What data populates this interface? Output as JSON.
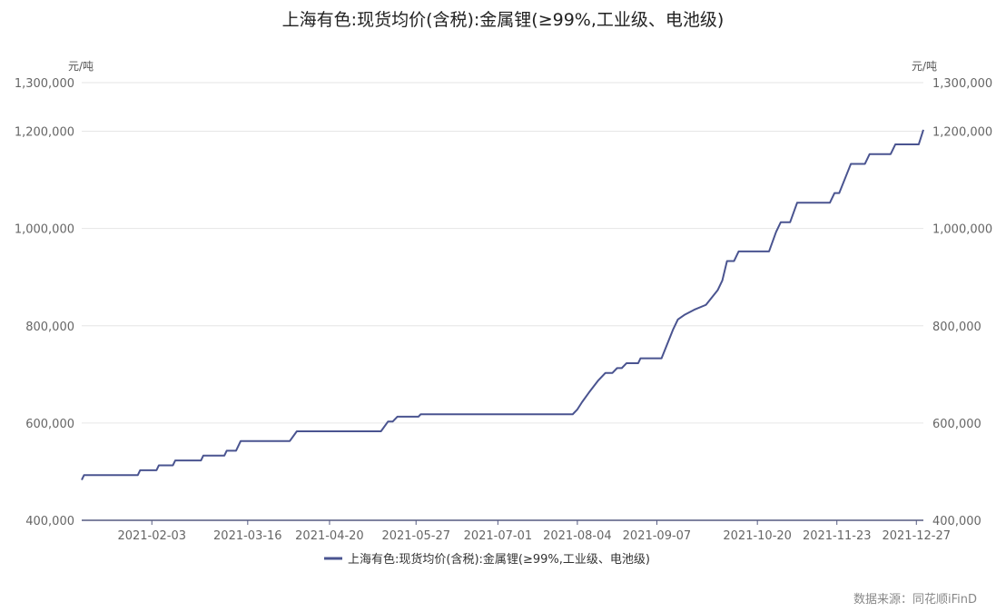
{
  "chart_data": {
    "type": "line",
    "title": "上海有色:现货均价(含税):金属锂(≥99%,工业级、电池级)",
    "unit_left": "元/吨",
    "unit_right": "元/吨",
    "x_tick_labels": [
      "2021-02-03",
      "2021-03-16",
      "2021-04-20",
      "2021-05-27",
      "2021-07-01",
      "2021-08-04",
      "2021-09-07",
      "2021-10-20",
      "2021-11-23",
      "2021-12-27"
    ],
    "y_tick_labels": [
      "1,300,000",
      "1,200,000",
      "1,000,000",
      "800,000",
      "600,000",
      "400,000"
    ],
    "y_ticks": [
      1300000,
      1200000,
      1000000,
      800000,
      600000,
      400000
    ],
    "ylim": [
      400000,
      1300000
    ],
    "xlim": [
      "2021-01-04",
      "2021-12-30"
    ],
    "legend_position": "bottom",
    "grid": true,
    "series": [
      {
        "name": "上海有色:现货均价(含税):金属锂(≥99%,工业级、电池级)",
        "color": "#4a5490",
        "points": [
          [
            "2021-01-04",
            483000
          ],
          [
            "2021-01-05",
            493000
          ],
          [
            "2021-01-28",
            493000
          ],
          [
            "2021-01-29",
            503000
          ],
          [
            "2021-02-05",
            503000
          ],
          [
            "2021-02-06",
            513000
          ],
          [
            "2021-02-12",
            513000
          ],
          [
            "2021-02-13",
            523000
          ],
          [
            "2021-02-24",
            523000
          ],
          [
            "2021-02-25",
            533000
          ],
          [
            "2021-03-06",
            533000
          ],
          [
            "2021-03-07",
            543000
          ],
          [
            "2021-03-11",
            543000
          ],
          [
            "2021-03-13",
            563000
          ],
          [
            "2021-04-03",
            563000
          ],
          [
            "2021-04-06",
            583000
          ],
          [
            "2021-05-12",
            583000
          ],
          [
            "2021-05-15",
            603000
          ],
          [
            "2021-05-17",
            603000
          ],
          [
            "2021-05-19",
            613000
          ],
          [
            "2021-05-28",
            613000
          ],
          [
            "2021-05-29",
            618000
          ],
          [
            "2021-08-02",
            618000
          ],
          [
            "2021-08-04",
            628000
          ],
          [
            "2021-08-06",
            643000
          ],
          [
            "2021-08-09",
            663000
          ],
          [
            "2021-08-13",
            688000
          ],
          [
            "2021-08-16",
            703000
          ],
          [
            "2021-08-19",
            703000
          ],
          [
            "2021-08-21",
            713000
          ],
          [
            "2021-08-23",
            713000
          ],
          [
            "2021-08-25",
            723000
          ],
          [
            "2021-08-30",
            723000
          ],
          [
            "2021-08-31",
            733000
          ],
          [
            "2021-09-09",
            733000
          ],
          [
            "2021-09-14",
            793000
          ],
          [
            "2021-09-16",
            813000
          ],
          [
            "2021-09-19",
            823000
          ],
          [
            "2021-09-23",
            833000
          ],
          [
            "2021-09-28",
            843000
          ],
          [
            "2021-10-03",
            873000
          ],
          [
            "2021-10-05",
            893000
          ],
          [
            "2021-10-07",
            933000
          ],
          [
            "2021-10-10",
            933000
          ],
          [
            "2021-10-12",
            953000
          ],
          [
            "2021-10-25",
            953000
          ],
          [
            "2021-10-28",
            993000
          ],
          [
            "2021-10-30",
            1013000
          ],
          [
            "2021-11-03",
            1013000
          ],
          [
            "2021-11-06",
            1053000
          ],
          [
            "2021-11-20",
            1053000
          ],
          [
            "2021-11-22",
            1073000
          ],
          [
            "2021-11-24",
            1073000
          ],
          [
            "2021-11-29",
            1133000
          ],
          [
            "2021-12-05",
            1133000
          ],
          [
            "2021-12-07",
            1153000
          ],
          [
            "2021-12-16",
            1153000
          ],
          [
            "2021-12-18",
            1173000
          ],
          [
            "2021-12-28",
            1173000
          ],
          [
            "2021-12-30",
            1203000
          ]
        ]
      }
    ]
  },
  "source_text": "数据来源：同花顺iFinD"
}
